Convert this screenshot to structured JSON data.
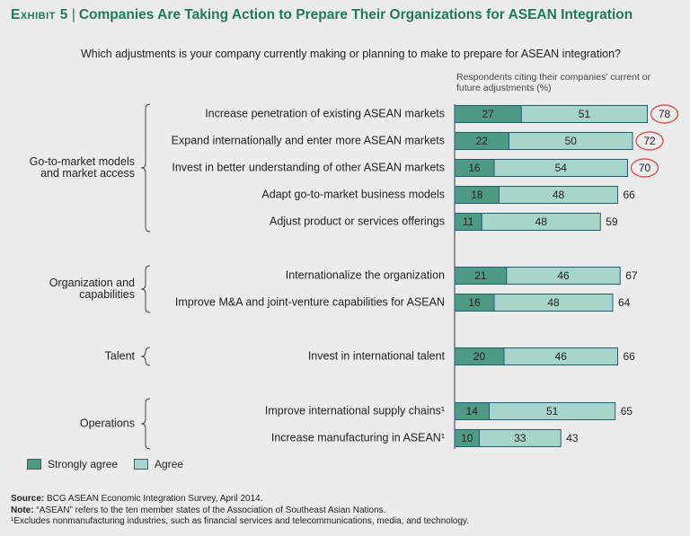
{
  "header": {
    "exhibit": "Exhibit 5",
    "title": "Companies Are Taking Action to Prepare Their Organizations for ASEAN Integration",
    "question": "Which adjustments is your company currently making or planning to make to prepare for ASEAN integration?",
    "column_note": "Respondents citing their companies’ current or future adjustments (%)"
  },
  "colors": {
    "strongly_agree": "#4e9a85",
    "agree": "#a8d5cb",
    "bar_border": "#1f5e73",
    "circle": "#d9534f",
    "title": "#1e7a5a"
  },
  "chart_data": {
    "type": "bar",
    "orientation": "horizontal",
    "stacked": true,
    "title": "Companies Are Taking Action to Prepare Their Organizations for ASEAN Integration",
    "categories": [
      "Increase penetration of existing ASEAN markets",
      "Expand internationally and enter more ASEAN markets",
      "Invest in better understanding of other ASEAN markets",
      "Adapt go-to-market business models",
      "Adjust product or services offerings",
      "Internationalize the organization",
      "Improve M&A and joint-venture capabilities for ASEAN",
      "Invest in international talent",
      "Improve international supply chains¹",
      "Increase manufacturing in ASEAN¹"
    ],
    "series": [
      {
        "name": "Strongly agree",
        "values": [
          27,
          22,
          16,
          18,
          11,
          21,
          16,
          20,
          14,
          10
        ]
      },
      {
        "name": "Agree",
        "values": [
          51,
          50,
          54,
          48,
          48,
          46,
          48,
          46,
          51,
          33
        ]
      }
    ],
    "totals": [
      78,
      72,
      70,
      66,
      59,
      67,
      64,
      66,
      65,
      43
    ],
    "highlighted_totals": [
      0,
      1,
      2
    ],
    "groups": [
      {
        "label": "Go-to-market models and market access",
        "rows": [
          0,
          1,
          2,
          3,
          4
        ]
      },
      {
        "label": "Organization and capabilities",
        "rows": [
          5,
          6
        ]
      },
      {
        "label": "Talent",
        "rows": [
          7
        ]
      },
      {
        "label": "Operations",
        "rows": [
          8,
          9
        ]
      }
    ],
    "legend": [
      "Strongly agree",
      "Agree"
    ],
    "legend_position": "bottom-left",
    "xlim": [
      0,
      78
    ]
  },
  "footer": {
    "source_label": "Source:",
    "source_text": "BCG ASEAN Economic Integration Survey, April 2014.",
    "note_label": "Note:",
    "note_text": "“ASEAN” refers to the ten member states of the Association of Southeast Asian Nations.",
    "footnote": "¹Excludes nonmanufacturing industries, such as financial services and telecommunications, media, and technology."
  }
}
